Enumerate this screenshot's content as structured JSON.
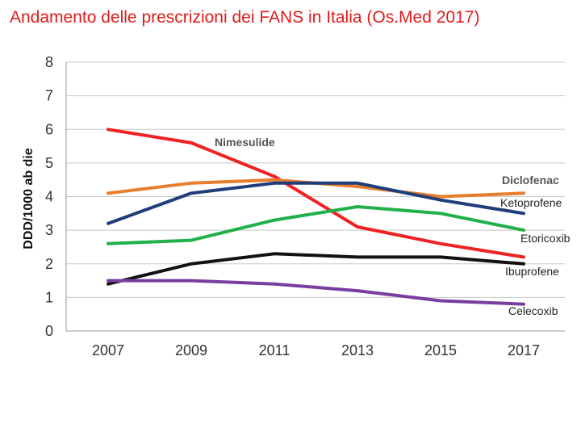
{
  "title": "Andamento delle prescrizioni dei FANS in Italia (Os.Med 2017)",
  "chart_data": {
    "type": "line",
    "title": "Andamento delle prescrizioni dei FANS in Italia (Os.Med 2017)",
    "xlabel": "",
    "ylabel": "DDD/1000 ab die",
    "x": [
      2007,
      2009,
      2011,
      2013,
      2015,
      2017
    ],
    "x_tick_labels": [
      "2007",
      "2009",
      "2011",
      "2013",
      "2015",
      "2017"
    ],
    "y_ticks": [
      "0",
      "1",
      "2",
      "3",
      "4",
      "5",
      "6",
      "7",
      "8"
    ],
    "ylim": [
      0,
      8
    ],
    "grid": "horizontal",
    "series": [
      {
        "name": "Nimesulide",
        "color": "#ee2222",
        "values": [
          6.0,
          5.6,
          4.6,
          3.1,
          2.6,
          2.2
        ]
      },
      {
        "name": "Diclofenac",
        "color": "#e87d2c",
        "values": [
          4.1,
          4.4,
          4.5,
          4.3,
          4.0,
          4.1
        ]
      },
      {
        "name": "Ketoprofene",
        "color": "#1f3d7a",
        "values": [
          3.2,
          4.1,
          4.4,
          4.4,
          3.9,
          3.5
        ]
      },
      {
        "name": "Etoricoxib",
        "color": "#22b04a",
        "values": [
          2.6,
          2.7,
          3.3,
          3.7,
          3.5,
          3.0
        ]
      },
      {
        "name": "Ibuprofene",
        "color": "#111111",
        "values": [
          1.4,
          2.0,
          2.3,
          2.2,
          2.2,
          2.0
        ]
      },
      {
        "name": "Celecoxib",
        "color": "#7a3ea0",
        "values": [
          1.5,
          1.5,
          1.4,
          1.2,
          0.9,
          0.8
        ]
      }
    ]
  }
}
